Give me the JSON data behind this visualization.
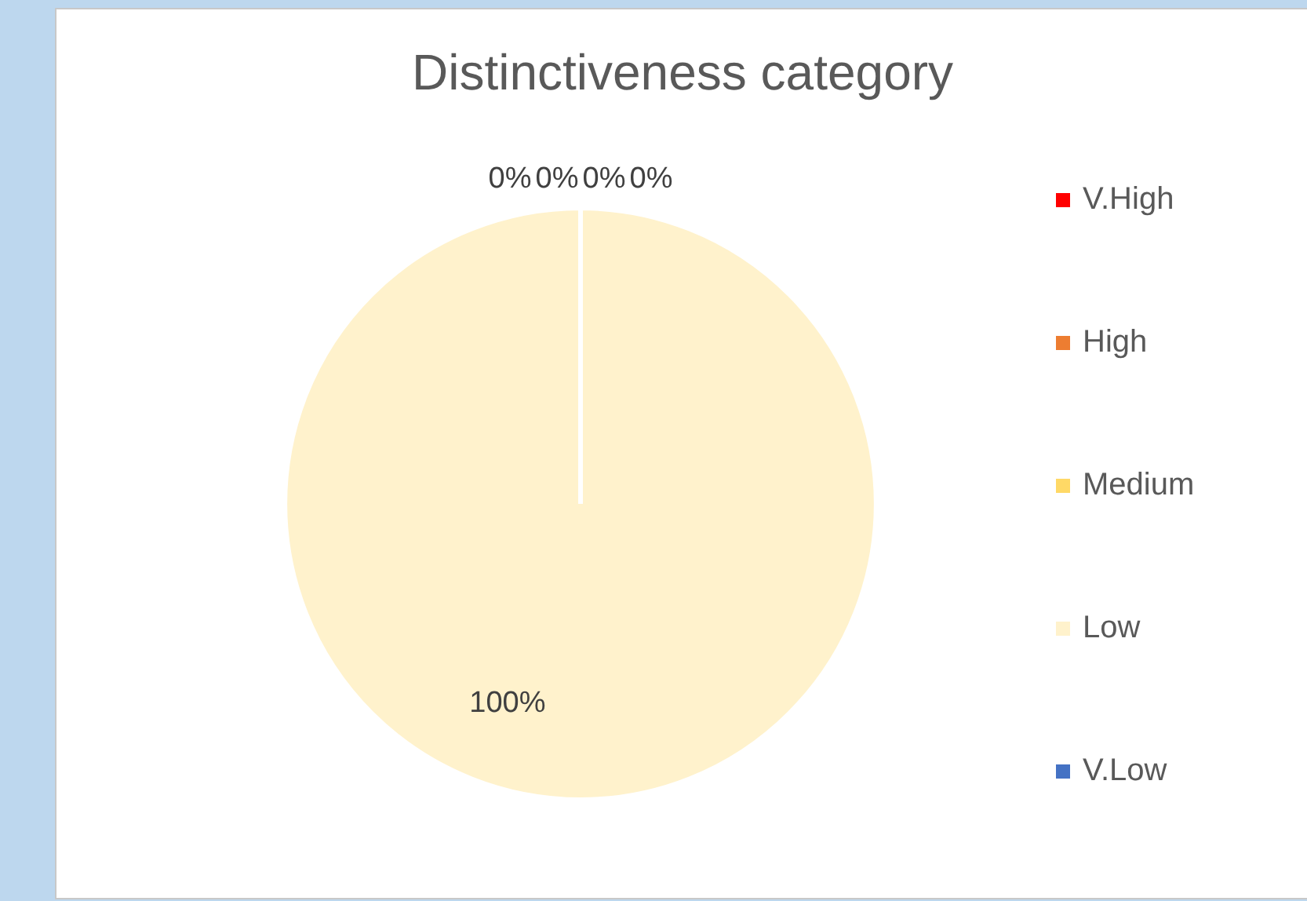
{
  "chart_data": {
    "type": "pie",
    "title": "Distinctiveness category",
    "categories": [
      "V.High",
      "High",
      "Medium",
      "Low",
      "V.Low"
    ],
    "values": [
      0,
      0,
      0,
      100,
      0
    ],
    "value_labels": [
      "0%",
      "0%",
      "0%",
      "100%",
      "0%"
    ],
    "colors": [
      "#ff0000",
      "#ed7d31",
      "#ffd966",
      "#fff2cc",
      "#4472c4"
    ],
    "legend": "right"
  }
}
